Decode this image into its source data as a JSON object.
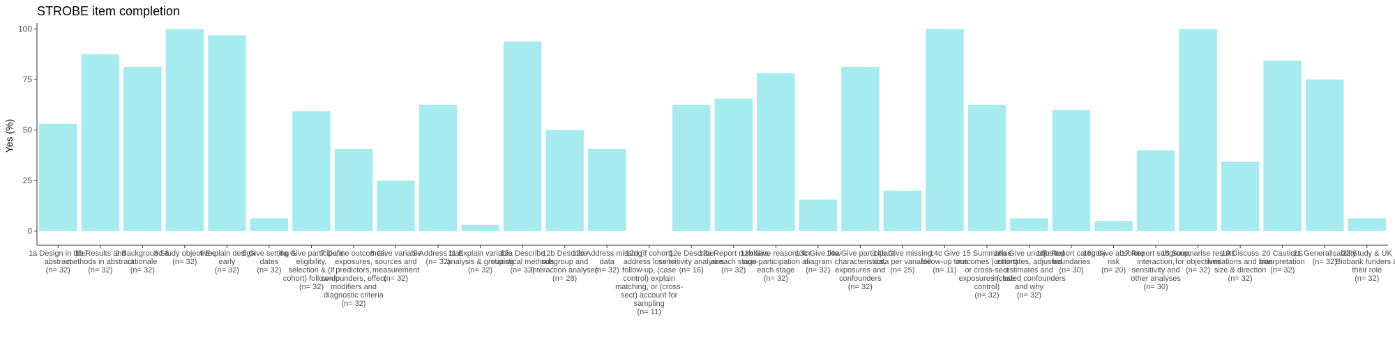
{
  "chart_data": {
    "type": "bar",
    "title": "STROBE item completion",
    "xlabel": "",
    "ylabel": "Yes (%)",
    "ylim": [
      -7,
      103
    ],
    "yticks": [
      0,
      25,
      50,
      75,
      100
    ],
    "grid": false,
    "bar_color": "#a6ebee",
    "categories": [
      [
        "1a Design in title/",
        "abstract",
        "(n= 32)"
      ],
      [
        "1b Results and",
        "methods in abstract",
        "(n= 32)"
      ],
      [
        "2 Background &",
        "rationale",
        "(n= 32)"
      ],
      [
        "3 Study objectives",
        "(n= 32)"
      ],
      [
        "4 Explain design",
        "early",
        "(n= 32)"
      ],
      [
        "5 Give setting &",
        "dates",
        "(n= 32)"
      ],
      [
        "6a Give participant",
        "eligibility,",
        "selection & (if",
        "cohort) follow-up",
        "(n= 32)"
      ],
      [
        "7 Define outcomes,",
        "exposures,",
        "predictors,",
        "confounders, effect",
        "modifiers and",
        "diagnostic criteria",
        "(n= 32)"
      ],
      [
        "8 Give variable",
        "sources and",
        "measurement",
        "(n= 32)"
      ],
      [
        "9 Address bias",
        "(n= 32)"
      ],
      [
        "11 Explain variable",
        "analysis & grouping",
        "(n= 32)"
      ],
      [
        "12a Describe",
        "statistical methods",
        "(n= 32)"
      ],
      [
        "12b Describe",
        "subgroup and",
        "interaction analyses",
        "(n= 28)"
      ],
      [
        "12c Address missing",
        "data",
        "(n= 32)"
      ],
      [
        "12d (if cohort)",
        "address loss to",
        "follow-up, (case",
        "control) explain",
        "matching, or (cross-",
        "sect) account for",
        "sampling",
        "(n= 11)"
      ],
      [
        "12e Describe",
        "sensitivity analyses",
        "(n= 16)"
      ],
      [
        "13a Report numbers",
        "at each stage",
        "(n= 32)"
      ],
      [
        "13b Give reasons for",
        "non-participation at",
        "each stage",
        "(n= 32)"
      ],
      [
        "13c Give flow",
        "diagram",
        "(n= 32)"
      ],
      [
        "14a Give participant",
        "characteristics,",
        "exposures and",
        "confounders",
        "(n= 32)"
      ],
      [
        "14b Give missing",
        "data per variable",
        "(n= 25)"
      ],
      [
        "14c Give",
        "follow-up time",
        "(n= 11)"
      ],
      [
        "15 Summarise",
        "outcomes (cohort)",
        "or cross-sect",
        "exposures (case",
        "control)",
        "(n= 32)"
      ],
      [
        "16a Give unadjusted",
        "estimates, adjusted",
        "estimates and",
        "included confounders",
        "and why",
        "(n= 32)"
      ],
      [
        "16b Report category",
        "boundaries",
        "(n= 30)"
      ],
      [
        "16c Give absolute",
        "risk",
        "(n= 20)"
      ],
      [
        "17 Report subgroup,",
        "interaction,",
        "sensitivity and",
        "other analyses",
        "(n= 30)"
      ],
      [
        "18 Summarise results",
        "for objectives",
        "(n= 32)"
      ],
      [
        "19 Discuss",
        "limitations and bias",
        "size & direction",
        "(n= 32)"
      ],
      [
        "20 Cautious",
        "interpretation",
        "(n= 32)"
      ],
      [
        "21 Generalisability",
        "(n= 32)"
      ],
      [
        "22 Study & UK",
        "Biobank funders &",
        "their role",
        "(n= 32)"
      ]
    ],
    "values": [
      53.1,
      87.5,
      81.3,
      100,
      96.9,
      6.3,
      59.4,
      40.6,
      25.0,
      62.5,
      3.1,
      93.8,
      50.0,
      40.6,
      0,
      62.5,
      65.6,
      78.1,
      15.6,
      81.3,
      20.0,
      100,
      62.5,
      6.3,
      60.0,
      5.0,
      40.0,
      100,
      34.4,
      84.4,
      75.0,
      6.3
    ]
  }
}
